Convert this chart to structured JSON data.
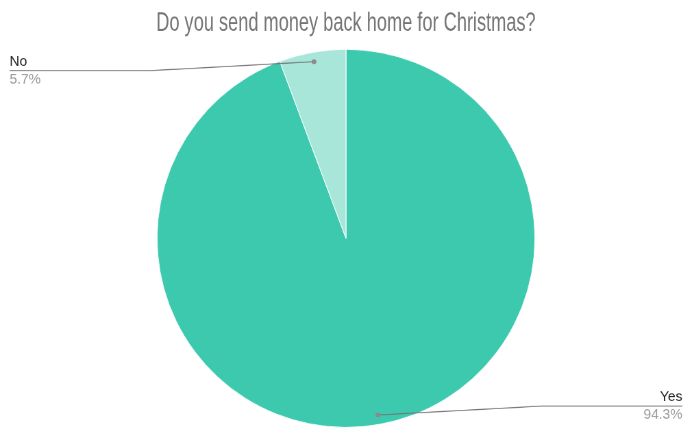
{
  "chart_data": {
    "type": "pie",
    "title": "Do you send money back home for Christmas?",
    "categories": [
      "Yes",
      "No"
    ],
    "values": [
      94.3,
      5.7
    ],
    "value_labels": [
      "94.3%",
      "5.7%"
    ],
    "colors": [
      "#3cc9ae",
      "#a8e6da"
    ],
    "legend": false
  }
}
